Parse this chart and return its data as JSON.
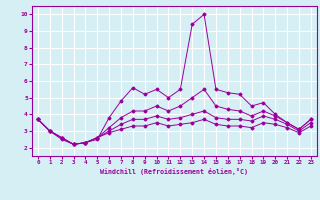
{
  "xlabel": "Windchill (Refroidissement éolien,°C)",
  "background_color": "#d6eff5",
  "grid_color": "#ffffff",
  "line_color": "#990099",
  "xlim": [
    -0.5,
    23.5
  ],
  "ylim": [
    1.5,
    10.5
  ],
  "yticks": [
    2,
    3,
    4,
    5,
    6,
    7,
    8,
    9,
    10
  ],
  "xticks": [
    0,
    1,
    2,
    3,
    4,
    5,
    6,
    7,
    8,
    9,
    10,
    11,
    12,
    13,
    14,
    15,
    16,
    17,
    18,
    19,
    20,
    21,
    22,
    23
  ],
  "series": [
    [
      3.7,
      3.0,
      2.5,
      2.2,
      2.3,
      2.5,
      3.8,
      4.8,
      5.6,
      5.2,
      5.5,
      5.0,
      5.5,
      9.4,
      10.0,
      5.5,
      5.3,
      5.2,
      4.5,
      4.7,
      4.0,
      3.5,
      3.1,
      3.7
    ],
    [
      3.7,
      3.0,
      2.6,
      2.2,
      2.3,
      2.6,
      3.2,
      3.8,
      4.2,
      4.2,
      4.5,
      4.2,
      4.5,
      5.0,
      5.5,
      4.5,
      4.3,
      4.2,
      3.9,
      4.2,
      3.9,
      3.5,
      3.1,
      3.7
    ],
    [
      3.7,
      3.0,
      2.6,
      2.2,
      2.3,
      2.6,
      3.0,
      3.4,
      3.7,
      3.7,
      3.9,
      3.7,
      3.8,
      4.0,
      4.2,
      3.8,
      3.7,
      3.7,
      3.6,
      3.9,
      3.7,
      3.4,
      3.0,
      3.5
    ],
    [
      3.7,
      3.0,
      2.6,
      2.2,
      2.3,
      2.6,
      2.9,
      3.1,
      3.3,
      3.3,
      3.5,
      3.3,
      3.4,
      3.5,
      3.7,
      3.4,
      3.3,
      3.3,
      3.2,
      3.5,
      3.4,
      3.2,
      2.9,
      3.3
    ]
  ]
}
